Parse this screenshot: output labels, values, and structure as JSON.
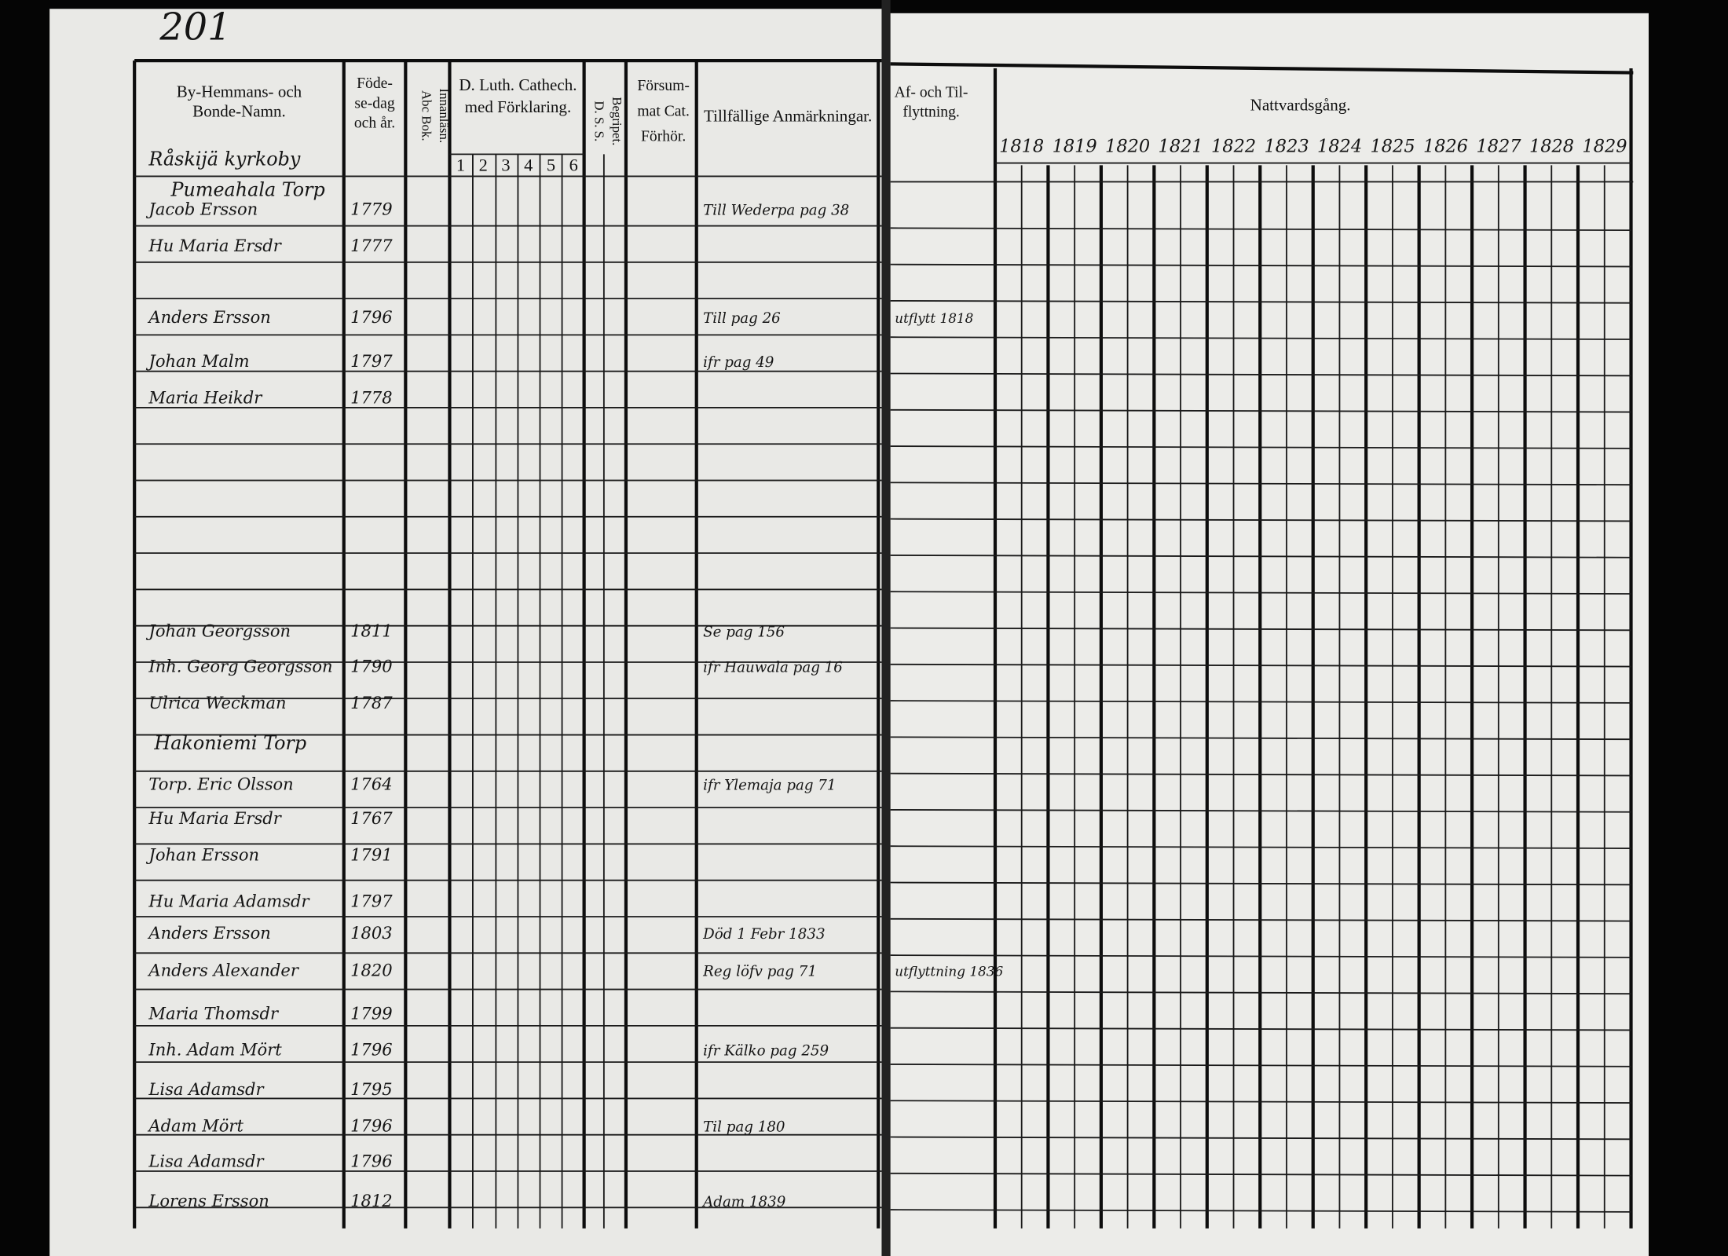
{
  "page_number": "201",
  "left_headers": {
    "name": [
      "By-Hemmans- och",
      "Bonde-Namn."
    ],
    "born": [
      "Föde-",
      "se-dag",
      "och år."
    ],
    "abc": [
      "Abc Bok.",
      "Innanläsn."
    ],
    "catechism": [
      "D. Luth. Cathech.",
      "med Förklaring."
    ],
    "catechism_parts": [
      "1",
      "2",
      "3",
      "4",
      "5",
      "6"
    ],
    "understood": [
      "D. S. S.",
      "Begripet."
    ],
    "missed": [
      "Försum-",
      "mat Cat.",
      "Förhör."
    ],
    "remarks": "Tillfällige Anmärkningar."
  },
  "right_headers": {
    "moving": [
      "Af- och Til-",
      "flyttning."
    ],
    "communion": "Nattvardsgång.",
    "years": [
      "1818",
      "1819",
      "1820",
      "1821",
      "1822",
      "1823",
      "1824",
      "1825",
      "1826",
      "1827",
      "1828",
      "1829"
    ]
  },
  "sections": [
    "Råskijä kyrkoby",
    "Pumeahala Torp",
    "Hakoniemi Torp"
  ],
  "rows": [
    {
      "name": "Jacob Ersson",
      "born": "1779",
      "note": "Till Wederpa pag 38"
    },
    {
      "name": "Hu Maria Ersdr",
      "born": "1777"
    },
    {
      "name": "Anders Ersson",
      "born": "1796",
      "note": "Till pag 26",
      "moving": "utflytt 1818"
    },
    {
      "name": "Johan Malm",
      "born": "1797",
      "note": "ifr pag 49"
    },
    {
      "name": "Maria Heikdr",
      "born": "1778"
    },
    {
      "name": "Johan Georgsson",
      "born": "1811",
      "note": "Se pag 156"
    },
    {
      "name": "Inh. Georg Georgsson",
      "born": "1790",
      "note": "ifr Hauwala pag 16"
    },
    {
      "name": "Ulrica Weckman",
      "born": "1787"
    },
    {
      "name": "Torp. Eric Olsson",
      "born": "1764",
      "note": "ifr Ylemaja pag 71"
    },
    {
      "name": "Hu Maria Ersdr",
      "born": "1767"
    },
    {
      "name": "Johan Ersson",
      "born": "1791"
    },
    {
      "name": "Hu Maria Adamsdr",
      "born": "1797"
    },
    {
      "name": "Anders Ersson",
      "born": "1803",
      "note": "Död 1 Febr 1833"
    },
    {
      "name": "Anders Alexander",
      "born": "1820",
      "note": "Reg löfv pag 71",
      "moving": "utflyttning 1836"
    },
    {
      "name": "Maria Thomsdr",
      "born": "1799"
    },
    {
      "name": "Inh. Adam Mört",
      "born": "1796",
      "note": "ifr Kälko pag 259"
    },
    {
      "name": "Lisa Adamsdr",
      "born": "1795"
    },
    {
      "name": "Adam Mört",
      "born": "1796",
      "note": "Til pag 180"
    },
    {
      "name": "Lisa Adamsdr",
      "born": "1796"
    },
    {
      "name": "Lorens Ersson",
      "born": "1812",
      "note": "Adam 1839"
    }
  ]
}
